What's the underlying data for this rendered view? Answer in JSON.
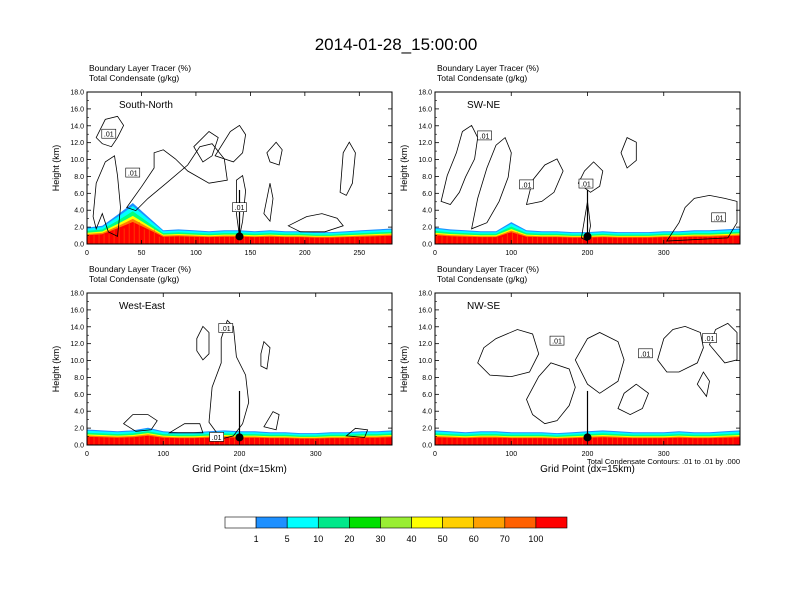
{
  "figure_title": "2014-01-28_15:00:00",
  "colors": {
    "bar_red": "#ff0000",
    "bar_orange": "#ff7f00",
    "cyan": "#00ffff",
    "teal": "#00ff7f",
    "blue": "#1e90ff",
    "yellow": "#ffff00",
    "contour": "#000000",
    "marker": "#000000"
  },
  "colorbar": {
    "colors": [
      "#ffffff",
      "#1e90ff",
      "#00ffff",
      "#00e88a",
      "#00e000",
      "#99ee33",
      "#ffff00",
      "#ffd000",
      "#ffa000",
      "#ff6000",
      "#ff0000"
    ],
    "labels": [
      "1",
      "5",
      "10",
      "20",
      "30",
      "40",
      "50",
      "60",
      "70",
      "100"
    ]
  },
  "footnote": "Total Condensate Contours: .01 to .01 by .000",
  "chart_data": [
    {
      "type": "contour",
      "panel": "top-left",
      "label": "South-North",
      "title_line1": "Boundary Layer Tracer   (%)",
      "title_line2": "Total Condensate   (g/kg)",
      "ylabel": "Height (km)",
      "xlabel": "",
      "xlim": [
        0,
        280
      ],
      "ylim": [
        0,
        18
      ],
      "xticks": [
        0,
        50,
        100,
        150,
        200,
        250
      ],
      "yticks": [
        "0.0",
        "2.0",
        "4.0",
        "6.0",
        "8.0",
        "10.0",
        "12.0",
        "14.0",
        "16.0",
        "18.0"
      ],
      "marker": {
        "x": 140,
        "y": 0.9
      },
      "contour_labels": [
        {
          "text": ".01",
          "x": 20,
          "y": 13.0
        },
        {
          "text": ".01",
          "x": 42,
          "y": 8.4
        },
        {
          "text": ".01",
          "x": 140,
          "y": 4.3
        }
      ],
      "bl_height_km": [
        1.8,
        2.0,
        3.2,
        4.5,
        3.0,
        1.5,
        1.6,
        1.5,
        1.4,
        1.5,
        1.5,
        1.4,
        1.5,
        1.4,
        1.4,
        1.3,
        1.3,
        1.4,
        1.5,
        1.6,
        1.7
      ]
    },
    {
      "type": "contour",
      "panel": "top-right",
      "label": "SW-NE",
      "title_line1": "Boundary Layer Tracer   (%)",
      "title_line2": "Total Condensate   (g/kg)",
      "ylabel": "Height (km)",
      "xlabel": "",
      "xlim": [
        0,
        400
      ],
      "ylim": [
        0,
        18
      ],
      "xticks": [
        0,
        100,
        200,
        300
      ],
      "yticks": [
        "0.0",
        "2.0",
        "4.0",
        "6.0",
        "8.0",
        "10.0",
        "12.0",
        "14.0",
        "16.0",
        "18.0"
      ],
      "marker": {
        "x": 200,
        "y": 0.9
      },
      "contour_labels": [
        {
          "text": ".01",
          "x": 65,
          "y": 12.8
        },
        {
          "text": ".01",
          "x": 120,
          "y": 7.0
        },
        {
          "text": ".01",
          "x": 198,
          "y": 7.1
        },
        {
          "text": ".01",
          "x": 372,
          "y": 3.1
        }
      ],
      "bl_height_km": [
        1.8,
        1.6,
        1.5,
        1.4,
        1.4,
        2.4,
        1.5,
        1.4,
        1.4,
        1.3,
        1.3,
        1.4,
        1.3,
        1.3,
        1.3,
        1.4,
        1.4,
        1.5,
        1.5,
        1.6,
        1.7
      ]
    },
    {
      "type": "contour",
      "panel": "bottom-left",
      "label": "West-East",
      "title_line1": "Boundary Layer Tracer   (%)",
      "title_line2": "Total Condensate   (g/kg)",
      "ylabel": "Height (km)",
      "xlabel": "Grid Point (dx=15km)",
      "xlim": [
        0,
        400
      ],
      "ylim": [
        0,
        18
      ],
      "xticks": [
        0,
        100,
        200,
        300
      ],
      "yticks": [
        "0.0",
        "2.0",
        "4.0",
        "6.0",
        "8.0",
        "10.0",
        "12.0",
        "14.0",
        "16.0",
        "18.0"
      ],
      "marker": {
        "x": 200,
        "y": 0.9
      },
      "contour_labels": [
        {
          "text": ".01",
          "x": 182,
          "y": 13.8
        },
        {
          "text": ".01",
          "x": 170,
          "y": 0.9
        }
      ],
      "bl_height_km": [
        1.7,
        1.6,
        1.5,
        1.6,
        1.9,
        1.5,
        1.4,
        1.4,
        1.5,
        1.6,
        1.5,
        1.5,
        1.4,
        1.4,
        1.3,
        1.3,
        1.4,
        1.4,
        1.5,
        1.5,
        1.6
      ]
    },
    {
      "type": "contour",
      "panel": "bottom-right",
      "label": "NW-SE",
      "title_line1": "Boundary Layer Tracer   (%)",
      "title_line2": "Total Condensate   (g/kg)",
      "ylabel": "Height (km)",
      "xlabel": "Grid Point (dx=15km)",
      "xlim": [
        0,
        400
      ],
      "ylim": [
        0,
        18
      ],
      "xticks": [
        0,
        100,
        200,
        300
      ],
      "yticks": [
        "0.0",
        "2.0",
        "4.0",
        "6.0",
        "8.0",
        "10.0",
        "12.0",
        "14.0",
        "16.0",
        "18.0"
      ],
      "marker": {
        "x": 200,
        "y": 0.9
      },
      "contour_labels": [
        {
          "text": ".01",
          "x": 160,
          "y": 12.3
        },
        {
          "text": ".01",
          "x": 276,
          "y": 10.8
        },
        {
          "text": ".01",
          "x": 360,
          "y": 12.6
        }
      ],
      "bl_height_km": [
        1.6,
        1.5,
        1.4,
        1.5,
        1.5,
        1.4,
        1.4,
        1.4,
        1.3,
        1.4,
        1.5,
        1.6,
        1.5,
        1.4,
        1.4,
        1.4,
        1.5,
        1.4,
        1.4,
        1.5,
        1.6
      ]
    }
  ]
}
